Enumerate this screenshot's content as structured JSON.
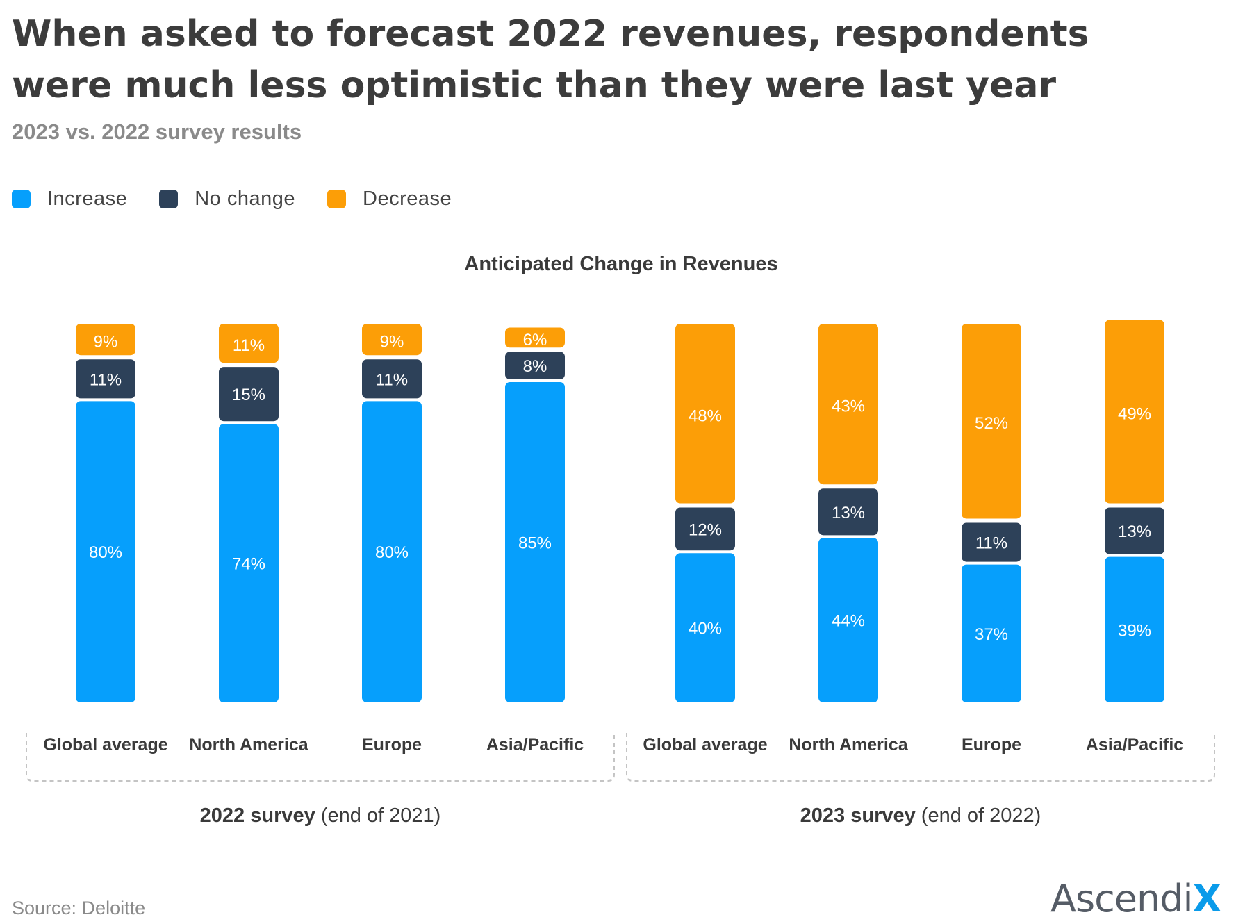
{
  "header": {
    "title_line1": "When asked to forecast 2022 revenues, respondents",
    "title_line2": "were much less optimistic than they were last year",
    "subtitle": "2023 vs. 2022 survey results"
  },
  "legend": [
    {
      "label": "Increase",
      "color": "#069ffc"
    },
    {
      "label": "No change",
      "color": "#2d4159"
    },
    {
      "label": "Decrease",
      "color": "#fc9e07"
    }
  ],
  "chart_data": {
    "type": "bar",
    "stacked": true,
    "title": "Anticipated Change in Revenues",
    "categories": [
      "Global average",
      "North America",
      "Europe",
      "Asia/Pacific",
      "Global average",
      "North America",
      "Europe",
      "Asia/Pacific"
    ],
    "groups": [
      {
        "bold": "2022 survey",
        "rest": " (end of 2021)"
      },
      {
        "bold": "2023 survey",
        "rest": " (end of 2022)"
      }
    ],
    "series": [
      {
        "name": "Increase",
        "color": "#069ffc",
        "label_color": "#ffffff",
        "values": [
          80,
          74,
          80,
          85,
          40,
          44,
          37,
          39
        ]
      },
      {
        "name": "No change",
        "color": "#2d4159",
        "label_color": "#ffffff",
        "values": [
          11,
          15,
          11,
          8,
          12,
          13,
          11,
          13
        ]
      },
      {
        "name": "Decrease",
        "color": "#fc9e07",
        "label_color": "#ffffff",
        "values": [
          9,
          11,
          9,
          6,
          48,
          43,
          52,
          49
        ]
      }
    ],
    "value_suffix": "%",
    "ylim": [
      0,
      100
    ]
  },
  "footer": {
    "source": "Source:  Deloitte",
    "logo_main": "Ascendi",
    "logo_x": "X"
  }
}
